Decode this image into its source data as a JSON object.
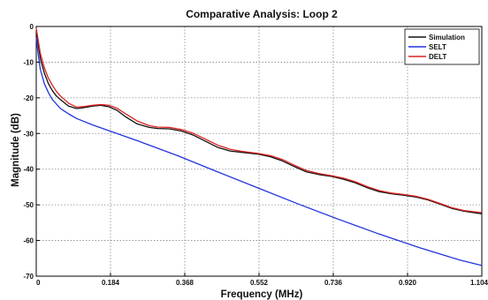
{
  "chart_data": {
    "type": "line",
    "title": "Comparative Analysis: Loop 2",
    "xlabel": "Frequency (MHz)",
    "ylabel": "Magnitude (dB)",
    "xlim": [
      0,
      1.104
    ],
    "ylim": [
      -70,
      0
    ],
    "xticks": [
      0,
      0.184,
      0.368,
      0.552,
      0.736,
      0.92,
      1.104
    ],
    "xtick_labels": [
      "0",
      "0.184",
      "0.368",
      "0.552",
      "0.736",
      "0.920",
      "1.104"
    ],
    "yticks": [
      0,
      -10,
      -20,
      -30,
      -40,
      -50,
      -60,
      -70
    ],
    "ytick_labels": [
      "0",
      "-10",
      "-20",
      "-30",
      "-40",
      "-50",
      "-60",
      "-70"
    ],
    "grid": true,
    "legend_position": "top-right",
    "series": [
      {
        "name": "Simulation",
        "color": "#111111",
        "x": [
          0,
          0.005,
          0.01,
          0.02,
          0.03,
          0.04,
          0.05,
          0.06,
          0.08,
          0.1,
          0.12,
          0.14,
          0.16,
          0.18,
          0.2,
          0.22,
          0.25,
          0.28,
          0.3,
          0.33,
          0.36,
          0.39,
          0.42,
          0.45,
          0.48,
          0.51,
          0.55,
          0.58,
          0.61,
          0.64,
          0.67,
          0.7,
          0.73,
          0.76,
          0.79,
          0.82,
          0.85,
          0.88,
          0.91,
          0.94,
          0.97,
          1.0,
          1.03,
          1.06,
          1.104
        ],
        "y": [
          -1,
          -5,
          -9,
          -13,
          -16,
          -18,
          -19.5,
          -20.5,
          -22.3,
          -23,
          -22.7,
          -22.3,
          -22.1,
          -22.5,
          -23.5,
          -25.2,
          -27.3,
          -28.3,
          -28.6,
          -28.7,
          -29.3,
          -30.5,
          -32.2,
          -33.9,
          -34.9,
          -35.3,
          -35.8,
          -36.5,
          -37.7,
          -39.3,
          -40.8,
          -41.5,
          -42,
          -42.8,
          -43.8,
          -45.2,
          -46.3,
          -46.9,
          -47.3,
          -47.8,
          -48.6,
          -49.8,
          -51,
          -51.8,
          -52.5
        ]
      },
      {
        "name": "SELT",
        "color": "#2233dd",
        "x": [
          0,
          0.005,
          0.01,
          0.02,
          0.03,
          0.04,
          0.06,
          0.08,
          0.1,
          0.14,
          0.18,
          0.25,
          0.35,
          0.45,
          0.55,
          0.65,
          0.75,
          0.85,
          0.95,
          1.05,
          1.104
        ],
        "y": [
          -3,
          -8,
          -12,
          -16,
          -18.5,
          -20.5,
          -23,
          -24.5,
          -25.8,
          -27.6,
          -29.2,
          -32,
          -36.2,
          -40.8,
          -45.3,
          -49.8,
          -54.1,
          -58.2,
          -62,
          -65.5,
          -67
        ]
      },
      {
        "name": "DELT",
        "color": "#dd2222",
        "x": [
          0,
          0.005,
          0.01,
          0.02,
          0.03,
          0.04,
          0.05,
          0.06,
          0.08,
          0.1,
          0.12,
          0.14,
          0.16,
          0.18,
          0.2,
          0.22,
          0.25,
          0.28,
          0.3,
          0.33,
          0.36,
          0.39,
          0.42,
          0.45,
          0.48,
          0.51,
          0.55,
          0.58,
          0.61,
          0.64,
          0.67,
          0.7,
          0.73,
          0.76,
          0.79,
          0.82,
          0.85,
          0.88,
          0.91,
          0.94,
          0.97,
          1.0,
          1.03,
          1.06,
          1.104
        ],
        "y": [
          -0.5,
          -4,
          -7.5,
          -11.5,
          -14.5,
          -16.5,
          -18.2,
          -19.5,
          -21.5,
          -22.6,
          -22.4,
          -22.1,
          -21.9,
          -22.1,
          -22.9,
          -24.4,
          -26.5,
          -27.8,
          -28.2,
          -28.3,
          -28.9,
          -30,
          -31.6,
          -33.3,
          -34.4,
          -35,
          -35.6,
          -36.2,
          -37.3,
          -38.9,
          -40.4,
          -41.2,
          -41.8,
          -42.5,
          -43.5,
          -44.9,
          -46,
          -46.7,
          -47.1,
          -47.6,
          -48.4,
          -49.6,
          -50.8,
          -51.6,
          -52.2
        ]
      }
    ]
  }
}
